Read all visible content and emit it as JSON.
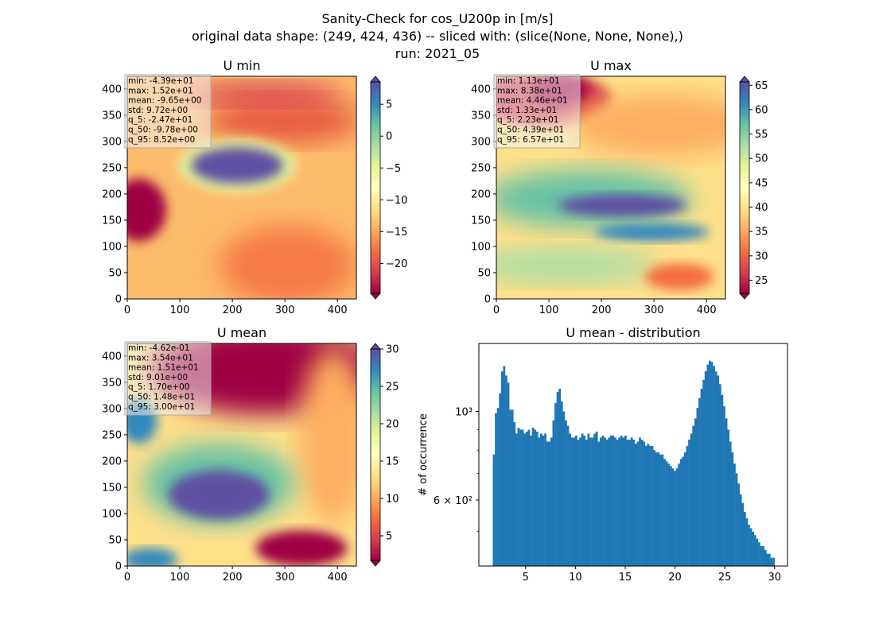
{
  "figure": {
    "title_lines": [
      "Sanity-Check for cos_U200p in [m/s]",
      "original data shape: (249, 424, 436) -- sliced with: (slice(None, None, None),)",
      "run: 2021_05"
    ]
  },
  "colormap": {
    "name": "Spectral",
    "stops": [
      "#9e0142",
      "#d53e4f",
      "#f46d43",
      "#fdae61",
      "#fee08b",
      "#ffffbf",
      "#e6f598",
      "#abdda4",
      "#66c2a5",
      "#3288bd",
      "#5e4fa2"
    ]
  },
  "panels": [
    {
      "title": "U min",
      "stats": [
        "min: -4.39e+01",
        "max: 1.52e+01",
        "mean: -9.65e+00",
        "std: 9.72e+00",
        "q_5: -2.47e+01",
        "q_50: -9.78e+00",
        "q_95: 8.52e+00"
      ],
      "x_ticks": [
        "0",
        "100",
        "200",
        "300",
        "400"
      ],
      "y_ticks": [
        "0",
        "50",
        "100",
        "150",
        "200",
        "250",
        "300",
        "350",
        "400"
      ],
      "colorbar_range": [
        -24.7,
        8.52
      ],
      "colorbar_ticks": [
        "5",
        "0",
        "−5",
        "−10",
        "−15",
        "−20"
      ]
    },
    {
      "title": "U max",
      "stats": [
        "min: 1.13e+01",
        "max: 8.38e+01",
        "mean: 4.46e+01",
        "std: 1.33e+01",
        "q_5: 2.23e+01",
        "q_50: 4.39e+01",
        "q_95: 6.57e+01"
      ],
      "x_ticks": [
        "0",
        "100",
        "200",
        "300",
        "400"
      ],
      "y_ticks": [
        "0",
        "50",
        "100",
        "150",
        "200",
        "250",
        "300",
        "350",
        "400"
      ],
      "colorbar_range": [
        22.3,
        65.7
      ],
      "colorbar_ticks": [
        "65",
        "60",
        "55",
        "50",
        "45",
        "40",
        "35",
        "30",
        "25"
      ]
    },
    {
      "title": "U mean",
      "stats": [
        "min: -4.62e-01",
        "max: 3.54e+01",
        "mean: 1.51e+01",
        "std: 9.01e+00",
        "q_5: 1.70e+00",
        "q_50: 1.48e+01",
        "q_95: 3.00e+01"
      ],
      "x_ticks": [
        "0",
        "100",
        "200",
        "300",
        "400"
      ],
      "y_ticks": [
        "0",
        "50",
        "100",
        "150",
        "200",
        "250",
        "300",
        "350",
        "400"
      ],
      "colorbar_range": [
        1.7,
        30.0
      ],
      "colorbar_ticks": [
        "30",
        "25",
        "20",
        "15",
        "10",
        "5"
      ]
    }
  ],
  "chart_data": {
    "type": "bar",
    "title": "U mean - distribution",
    "xlabel": "",
    "ylabel": "# of occurrence",
    "yscale": "log",
    "xlim": [
      0.3,
      31.3
    ],
    "ylim": [
      410,
      1480
    ],
    "x_ticks": [
      "5",
      "10",
      "15",
      "20",
      "25",
      "30"
    ],
    "y_ticks": [
      "10³",
      "6 × 10²"
    ],
    "bin_range": [
      1.7,
      30.0
    ],
    "bar_color": "#1f77b4",
    "values": [
      780,
      990,
      1020,
      1110,
      1260,
      1300,
      1230,
      1180,
      1010,
      1010,
      940,
      880,
      910,
      900,
      900,
      880,
      890,
      900,
      870,
      910,
      900,
      890,
      860,
      880,
      870,
      880,
      840,
      840,
      860,
      950,
      1050,
      1120,
      1140,
      1060,
      1000,
      950,
      920,
      880,
      860,
      860,
      870,
      850,
      860,
      880,
      870,
      850,
      880,
      860,
      860,
      880,
      890,
      840,
      860,
      870,
      860,
      850,
      860,
      870,
      870,
      860,
      850,
      860,
      870,
      860,
      870,
      850,
      850,
      860,
      850,
      830,
      840,
      860,
      850,
      840,
      820,
      830,
      820,
      820,
      800,
      790,
      790,
      780,
      780,
      760,
      750,
      740,
      730,
      720,
      710,
      720,
      740,
      760,
      770,
      790,
      820,
      850,
      880,
      920,
      960,
      1020,
      1080,
      1140,
      1200,
      1260,
      1310,
      1340,
      1330,
      1300,
      1260,
      1230,
      1170,
      1100,
      1030,
      960,
      900,
      840,
      790,
      740,
      700,
      660,
      620,
      590,
      560,
      540,
      520,
      510,
      500,
      490,
      480,
      470,
      460,
      460,
      450,
      440,
      440,
      430,
      430
    ]
  }
}
